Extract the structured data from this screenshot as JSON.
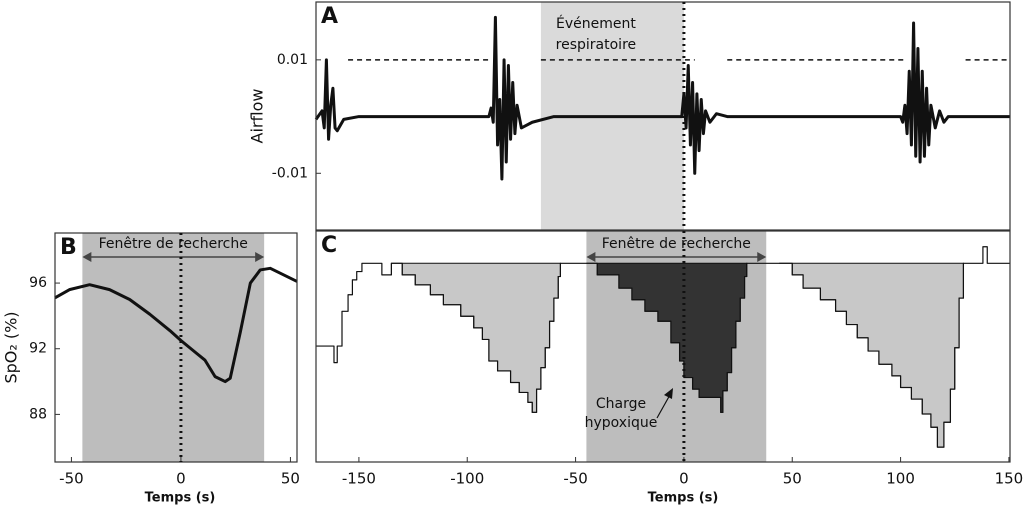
{
  "chart_data": [
    {
      "type": "line",
      "panel_label": "A",
      "ylabel": "Airflow",
      "xlim": [
        -169.8,
        150.5
      ],
      "ylim": [
        -0.02,
        0.0202
      ],
      "yticks": [
        -0.01,
        0.01
      ],
      "threshold": 0.01,
      "threshold_segments": [
        [
          -155,
          -89
        ],
        [
          -66,
          5
        ],
        [
          20,
          103
        ],
        [
          130,
          150.5
        ]
      ],
      "event_window": [
        -66,
        0
      ],
      "event_time": 0,
      "event_label": [
        "Événement",
        "respiratoire"
      ],
      "series": [
        {
          "color": "#111111",
          "x": [
            -169.8,
            -167,
            -166,
            -165,
            -164,
            -163,
            -162,
            -161,
            -160,
            -157,
            -150,
            -90,
            -89,
            -88,
            -87,
            -86,
            -85,
            -84,
            -83,
            -82,
            -81,
            -80,
            -79,
            -78,
            -77,
            -75,
            -70,
            -60,
            -1,
            0,
            1,
            2,
            3,
            4,
            5,
            6,
            7,
            8,
            9,
            10,
            12,
            15,
            20,
            100,
            101,
            102,
            103,
            104,
            105,
            106,
            107,
            108,
            109,
            110,
            111,
            112,
            113,
            114,
            116,
            118,
            120,
            122,
            150.5
          ],
          "values": [
            -0.0005,
            0.001,
            -0.002,
            0.01,
            -0.004,
            0.002,
            0.005,
            -0.002,
            -0.0025,
            -0.0005,
            0,
            0,
            0.0015,
            -0.001,
            0.0175,
            -0.005,
            0.003,
            -0.011,
            0.01,
            -0.008,
            0.009,
            -0.004,
            0.006,
            -0.003,
            0.002,
            -0.002,
            -0.001,
            0,
            0,
            0.004,
            -0.002,
            0.009,
            -0.005,
            0.006,
            -0.01,
            0.004,
            -0.006,
            0.003,
            -0.003,
            0.001,
            -0.001,
            0.0005,
            0,
            0,
            -0.001,
            0.002,
            -0.003,
            0.008,
            -0.005,
            0.0165,
            -0.007,
            0.012,
            -0.008,
            0.008,
            -0.007,
            0.005,
            -0.005,
            0.002,
            -0.002,
            0.001,
            -0.001,
            0,
            0
          ]
        }
      ]
    },
    {
      "type": "line",
      "panel_label": "B",
      "xlabel": "Temps (s)",
      "ylabel": "SpO₂ (%)",
      "xlim": [
        -57.5,
        53
      ],
      "ylim": [
        85.1,
        99.05
      ],
      "xticks": [
        -50,
        0,
        50
      ],
      "yticks": [
        88,
        92,
        96
      ],
      "search_window": [
        -45,
        38
      ],
      "event_time": 0,
      "window_label": "Fenêtre de recherche",
      "series": [
        {
          "color": "#111111",
          "x": [
            -57.5,
            -50.9,
            -41.7,
            -32.6,
            -23.4,
            -14.2,
            -5,
            0,
            6.4,
            11,
            15.6,
            20.2,
            22.5,
            27.1,
            31.7,
            36.2,
            40.8,
            53
          ],
          "values": [
            95.1,
            95.6,
            95.9,
            95.6,
            95,
            94.1,
            93.1,
            92.5,
            91.8,
            91.3,
            90.3,
            90,
            90.2,
            93,
            96,
            96.8,
            96.9,
            96.1
          ]
        }
      ]
    },
    {
      "type": "area",
      "panel_label": "C",
      "xlabel": "Temps (s)",
      "xlim": [
        -169.8,
        150.5
      ],
      "ylim": [
        85.1,
        99.05
      ],
      "xticks": [
        -150,
        -100,
        -50,
        0,
        50,
        100,
        150
      ],
      "baseline": 97.1,
      "search_window": [
        -45,
        38
      ],
      "event_time": 0,
      "window_label": "Fenêtre de recherche",
      "annotation": [
        "Charge",
        "hypoxique"
      ],
      "fills": [
        {
          "from": -135,
          "to": -57,
          "color": "#c8c8c8"
        },
        {
          "from": -45,
          "to": 29,
          "color": "#333333"
        },
        {
          "from": 44,
          "to": 129,
          "color": "#c8c8c8"
        }
      ],
      "series": [
        {
          "color": "#111111",
          "x": [
            -169.8,
            -161.5,
            -161.5,
            -160,
            -160,
            -157.8,
            -157.8,
            -155,
            -155,
            -153,
            -153,
            -151,
            -151,
            -148.6,
            -148.6,
            -139.4,
            -139.4,
            -135,
            -135,
            -130,
            -130,
            -124,
            -124,
            -117,
            -117,
            -111,
            -111,
            -103,
            -103,
            -97,
            -97,
            -93,
            -93,
            -90,
            -90,
            -86,
            -86,
            -80,
            -80,
            -76,
            -76,
            -72,
            -72,
            -70,
            -70,
            -68,
            -68,
            -66,
            -66,
            -64,
            -64,
            -62,
            -62,
            -60,
            -60,
            -58,
            -58,
            -57,
            -57,
            -45,
            -40,
            -40,
            -30,
            -30,
            -24,
            -24,
            -18,
            -18,
            -12,
            -12,
            -6,
            -6,
            -2,
            -2,
            0,
            0,
            4,
            4,
            7,
            7,
            17,
            17,
            18,
            18,
            20,
            20,
            22,
            22,
            24,
            24,
            26,
            26,
            28,
            28,
            29,
            29,
            44,
            50,
            50,
            55,
            55,
            63,
            63,
            70,
            70,
            75,
            75,
            80,
            80,
            85,
            85,
            90,
            90,
            96,
            96,
            100,
            100,
            105,
            105,
            110,
            110,
            114,
            114,
            117,
            117,
            120,
            120,
            123,
            123,
            125,
            125,
            127,
            127,
            129,
            129,
            138,
            138,
            140,
            140,
            150.5
          ],
          "values": [
            92.1,
            92.1,
            91.1,
            91.1,
            92.1,
            92.1,
            94.2,
            94.2,
            95.2,
            95.2,
            96.1,
            96.1,
            96.6,
            96.6,
            97.1,
            97.1,
            96.4,
            96.4,
            97.1,
            97.1,
            96.4,
            96.4,
            95.8,
            95.8,
            95.2,
            95.2,
            94.6,
            94.6,
            93.9,
            93.9,
            93.2,
            93.2,
            92.5,
            92.5,
            91.2,
            91.2,
            90.6,
            90.6,
            89.9,
            89.9,
            89.3,
            89.3,
            88.7,
            88.7,
            88.1,
            88.1,
            89.5,
            89.5,
            90.8,
            90.8,
            92,
            92,
            93.6,
            93.6,
            95,
            95,
            96.3,
            96.3,
            97.1,
            97.1,
            97.1,
            96.4,
            96.4,
            95.6,
            95.6,
            94.9,
            94.9,
            94.2,
            94.2,
            93.6,
            93.6,
            92.3,
            92.3,
            91.2,
            91.2,
            90.2,
            90.2,
            89.5,
            89.5,
            89,
            89,
            88.1,
            88.1,
            89.4,
            89.4,
            90.5,
            90.5,
            92,
            92,
            93.6,
            93.6,
            95,
            95,
            96.3,
            96.3,
            97.1,
            97.1,
            97.1,
            96.4,
            96.4,
            95.6,
            95.6,
            94.9,
            94.9,
            94.2,
            94.2,
            93.4,
            93.4,
            92.6,
            92.6,
            91.8,
            91.8,
            91,
            91,
            90.3,
            90.3,
            89.6,
            89.6,
            88.9,
            88.9,
            88,
            88,
            87.2,
            87.2,
            86,
            86,
            87.5,
            87.5,
            89.5,
            89.5,
            92,
            92,
            95,
            95,
            97.1,
            97.1,
            98.1,
            98.1,
            97.1,
            97.1
          ]
        }
      ]
    }
  ]
}
